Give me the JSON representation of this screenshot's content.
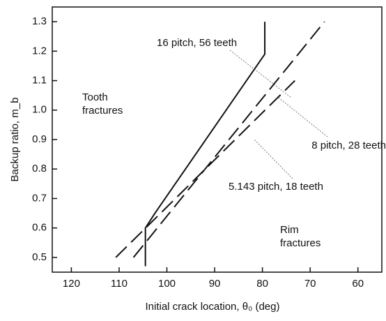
{
  "chart_data": {
    "type": "line",
    "xlabel": "Initial crack location, θ₀ (deg)",
    "ylabel": "Backup ratio, m_b",
    "xlim": [
      124,
      55
    ],
    "ylim": [
      0.45,
      1.35
    ],
    "xticks": [
      120,
      110,
      100,
      90,
      80,
      70,
      60
    ],
    "yticks": [
      0.5,
      0.6,
      0.7,
      0.8,
      0.9,
      {
        "value": 1,
        "label": "1.0"
      },
      1.1,
      1.2,
      1.3
    ],
    "grid": false,
    "series": [
      {
        "name": "16 pitch, 56 teeth",
        "color": "#111111",
        "style": "solid",
        "x": [
          104.5,
          104.5,
          102.5,
          79.5,
          79.5
        ],
        "values": [
          0.47,
          0.6,
          0.65,
          1.19,
          1.3
        ]
      },
      {
        "name": "8 pitch, 28 teeth",
        "color": "#111111",
        "style": "dashed",
        "x": [
          107,
          67
        ],
        "values": [
          0.5,
          1.3
        ]
      },
      {
        "name": "5.143 pitch, 18 teeth",
        "color": "#111111",
        "style": "dashed",
        "x": [
          110.7,
          73.2
        ],
        "values": [
          0.5,
          1.1
        ]
      }
    ],
    "annotations": [
      [
        "Tooth",
        "fractures"
      ],
      [
        "Rim",
        "fractures"
      ]
    ]
  }
}
